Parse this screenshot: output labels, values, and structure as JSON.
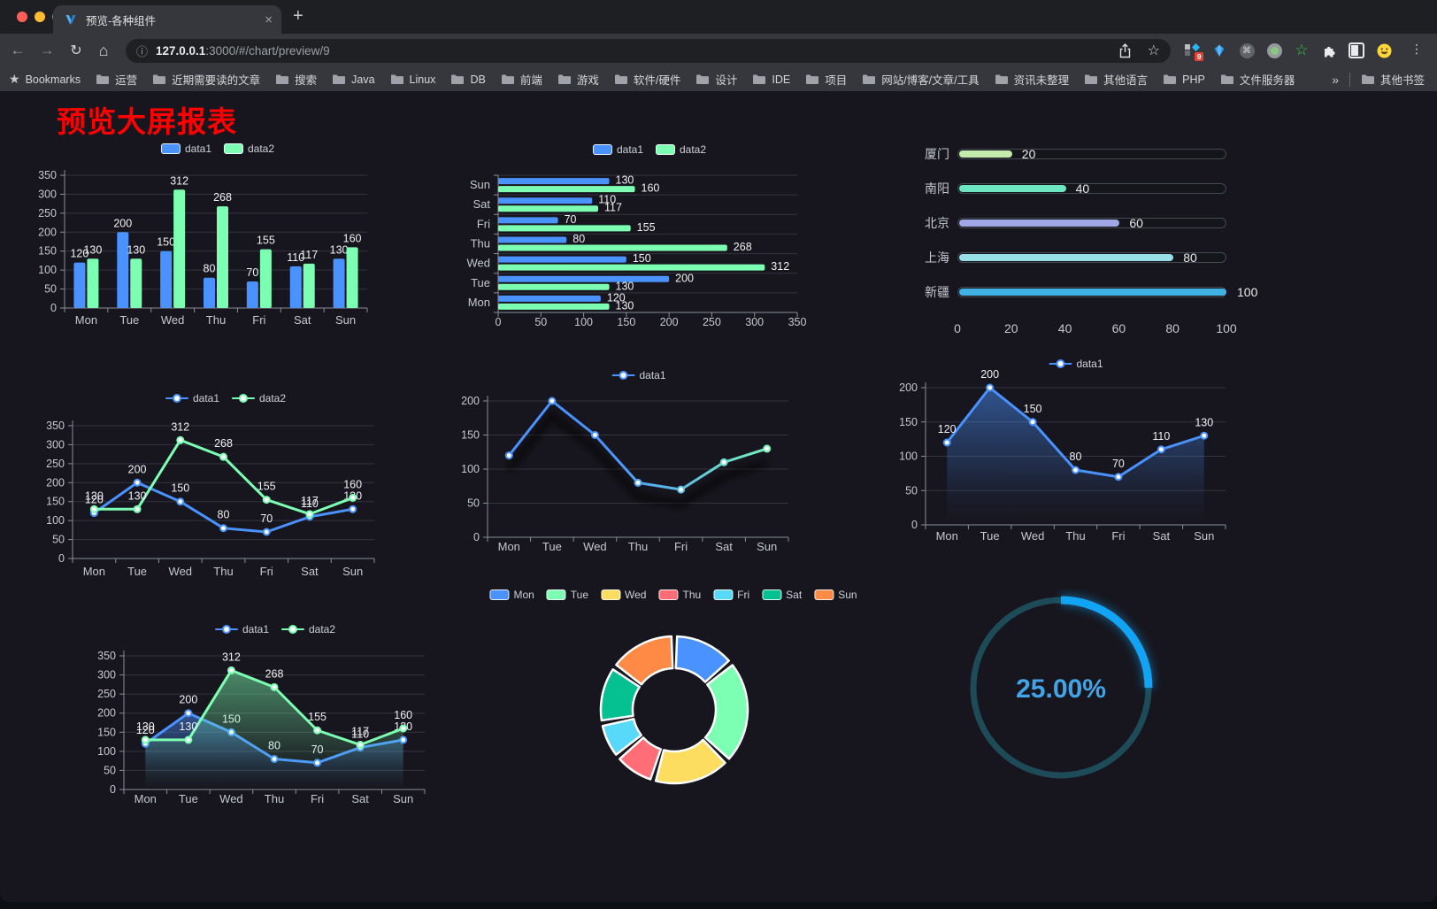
{
  "browser": {
    "tab_title": "预览-各种组件",
    "close_glyph": "×",
    "new_tab_glyph": "+",
    "url_host": "127.0.0.1",
    "url_path": ":3000/#/chart/preview/9",
    "bookmarks_label": "Bookmarks",
    "bookmarks": [
      "运营",
      "近期需要读的文章",
      "搜索",
      "Java",
      "Linux",
      "DB",
      "前端",
      "游戏",
      "软件/硬件",
      "设计",
      "IDE",
      "项目",
      "网站/博客/文章/工具",
      "资讯未整理",
      "其他语言",
      "PHP",
      "文件服务器"
    ],
    "overflow_glyph": "»",
    "other_bookmarks": "其他书签",
    "extension_badge": "9",
    "menu_glyph": "⋮"
  },
  "page": {
    "title": "预览大屏报表",
    "title_color": "#ff0000",
    "background": "#17151d"
  },
  "chart_data": [
    {
      "id": "grouped-bar",
      "type": "bar",
      "categories": [
        "Mon",
        "Tue",
        "Wed",
        "Thu",
        "Fri",
        "Sat",
        "Sun"
      ],
      "series": [
        {
          "name": "data1",
          "color": "#4992ff",
          "values": [
            120,
            200,
            150,
            80,
            70,
            110,
            130
          ]
        },
        {
          "name": "data2",
          "color": "#7cffb2",
          "values": [
            130,
            130,
            312,
            268,
            155,
            117,
            160
          ]
        }
      ],
      "ylim": [
        0,
        350
      ],
      "yticks": [
        0,
        50,
        100,
        150,
        200,
        250,
        300,
        350
      ],
      "value_labels": true,
      "legend_position": "top",
      "grid": true
    },
    {
      "id": "horizontal-bar",
      "type": "bar-horizontal",
      "categories_top_to_bottom": [
        "Sun",
        "Sat",
        "Fri",
        "Thu",
        "Wed",
        "Tue",
        "Mon"
      ],
      "series": [
        {
          "name": "data1",
          "color": "#4992ff",
          "values": [
            130,
            110,
            70,
            80,
            150,
            200,
            120
          ]
        },
        {
          "name": "data2",
          "color": "#7cffb2",
          "values": [
            160,
            117,
            155,
            268,
            312,
            130,
            130
          ]
        }
      ],
      "xlim": [
        0,
        350
      ],
      "xticks": [
        0,
        50,
        100,
        150,
        200,
        250,
        300,
        350
      ],
      "value_labels": true,
      "legend_position": "top"
    },
    {
      "id": "city-progress",
      "type": "bar-horizontal",
      "items": [
        {
          "label": "厦门",
          "value": 20,
          "color": "#c4ebad"
        },
        {
          "label": "南阳",
          "value": 40,
          "color": "#6be6c1"
        },
        {
          "label": "北京",
          "value": 60,
          "color": "#a0a7e6"
        },
        {
          "label": "上海",
          "value": 80,
          "color": "#96dee8"
        },
        {
          "label": "新疆",
          "value": 100,
          "color": "#3fb1e3"
        }
      ],
      "xlim": [
        0,
        100
      ],
      "xticks": [
        0,
        20,
        40,
        60,
        80,
        100
      ]
    },
    {
      "id": "line-basic",
      "type": "line",
      "categories": [
        "Mon",
        "Tue",
        "Wed",
        "Thu",
        "Fri",
        "Sat",
        "Sun"
      ],
      "series": [
        {
          "name": "data1",
          "color": "#4992ff",
          "values": [
            120,
            200,
            150,
            80,
            70,
            110,
            130
          ]
        },
        {
          "name": "data2",
          "color": "#7cffb2",
          "values": [
            130,
            130,
            312,
            268,
            155,
            117,
            160
          ]
        }
      ],
      "ylim": [
        0,
        350
      ],
      "yticks": [
        0,
        50,
        100,
        150,
        200,
        250,
        300,
        350
      ],
      "value_labels": true,
      "legend_position": "top"
    },
    {
      "id": "line-gradient",
      "type": "line",
      "categories": [
        "Mon",
        "Tue",
        "Wed",
        "Thu",
        "Fri",
        "Sat",
        "Sun"
      ],
      "series": [
        {
          "name": "data1",
          "color_gradient": [
            "#4992ff",
            "#7cffb2"
          ],
          "values": [
            120,
            200,
            150,
            80,
            70,
            110,
            130
          ]
        }
      ],
      "ylim": [
        0,
        200
      ],
      "yticks": [
        0,
        50,
        100,
        150,
        200
      ],
      "value_labels": false,
      "shadow": true,
      "legend_position": "top"
    },
    {
      "id": "line-area",
      "type": "line",
      "categories": [
        "Mon",
        "Tue",
        "Wed",
        "Thu",
        "Fri",
        "Sat",
        "Sun"
      ],
      "series": [
        {
          "name": "data1",
          "color": "#4992ff",
          "area": true,
          "values": [
            120,
            200,
            150,
            80,
            70,
            110,
            130
          ]
        }
      ],
      "ylim": [
        0,
        200
      ],
      "yticks": [
        0,
        50,
        100,
        150,
        200
      ],
      "value_labels": true,
      "legend_position": "top"
    },
    {
      "id": "line-area-double",
      "type": "line",
      "categories": [
        "Mon",
        "Tue",
        "Wed",
        "Thu",
        "Fri",
        "Sat",
        "Sun"
      ],
      "series": [
        {
          "name": "data1",
          "color": "#4992ff",
          "area": true,
          "values": [
            120,
            200,
            150,
            80,
            70,
            110,
            130
          ]
        },
        {
          "name": "data2",
          "color": "#7cffb2",
          "area": true,
          "values": [
            130,
            130,
            312,
            268,
            155,
            117,
            160
          ]
        }
      ],
      "ylim": [
        0,
        350
      ],
      "yticks": [
        0,
        50,
        100,
        150,
        200,
        250,
        300,
        350
      ],
      "value_labels": true,
      "legend_position": "top"
    },
    {
      "id": "donut",
      "type": "pie",
      "slices": [
        {
          "label": "Mon",
          "value": 120,
          "color": "#4992ff"
        },
        {
          "label": "Tue",
          "value": 200,
          "color": "#7cffb2"
        },
        {
          "label": "Wed",
          "value": 150,
          "color": "#fddd60"
        },
        {
          "label": "Thu",
          "value": 80,
          "color": "#ff6e76"
        },
        {
          "label": "Fri",
          "value": 70,
          "color": "#58d9f9"
        },
        {
          "label": "Sat",
          "value": 110,
          "color": "#05c091"
        },
        {
          "label": "Sun",
          "value": 130,
          "color": "#ff8a45"
        }
      ],
      "legend_position": "top"
    },
    {
      "id": "gauge",
      "type": "gauge",
      "value": 25,
      "min": 0,
      "max": 100,
      "display": "25.00%",
      "arc_color": "#12a4f4",
      "track_color": "#1d4b58",
      "text_color": "#41a4e6"
    }
  ]
}
